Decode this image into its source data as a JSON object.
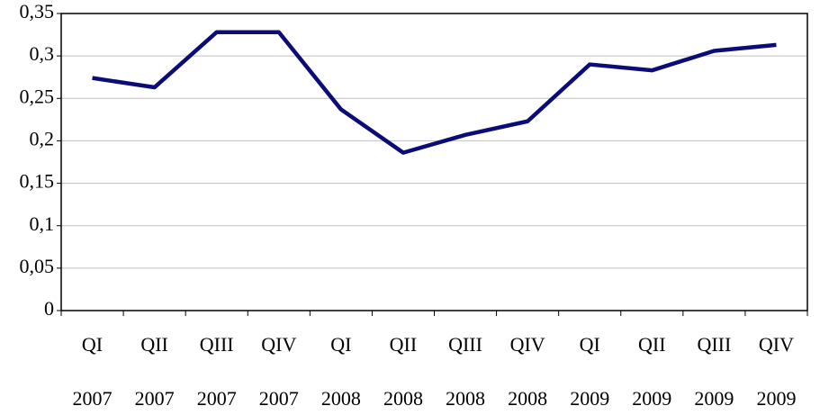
{
  "chart_data": {
    "type": "line",
    "categories": [
      [
        "QI",
        "2007"
      ],
      [
        "QII",
        "2007"
      ],
      [
        "QIII",
        "2007"
      ],
      [
        "QIV",
        "2007"
      ],
      [
        "QI",
        "2008"
      ],
      [
        "QII",
        "2008"
      ],
      [
        "QIII",
        "2008"
      ],
      [
        "QIV",
        "2008"
      ],
      [
        "QI",
        "2009"
      ],
      [
        "QII",
        "2009"
      ],
      [
        "QIII",
        "2009"
      ],
      [
        "QIV",
        "2009"
      ]
    ],
    "series": [
      {
        "color": "#0c0c78",
        "values": [
          0.274,
          0.263,
          0.328,
          0.328,
          0.237,
          0.186,
          0.207,
          0.223,
          0.29,
          0.283,
          0.306,
          0.313
        ]
      }
    ],
    "ylim": [
      0,
      0.35
    ],
    "yticks": [
      0,
      {
        "value": 0.05,
        "label": "0,05"
      },
      {
        "value": 0.1,
        "label": "0,1"
      },
      {
        "value": 0.15,
        "label": "0,15"
      },
      {
        "value": 0.2,
        "label": "0,2"
      },
      {
        "value": 0.25,
        "label": "0,25"
      },
      {
        "value": 0.3,
        "label": "0,3"
      },
      {
        "value": 0.35,
        "label": "0,35"
      }
    ],
    "grid": true
  }
}
